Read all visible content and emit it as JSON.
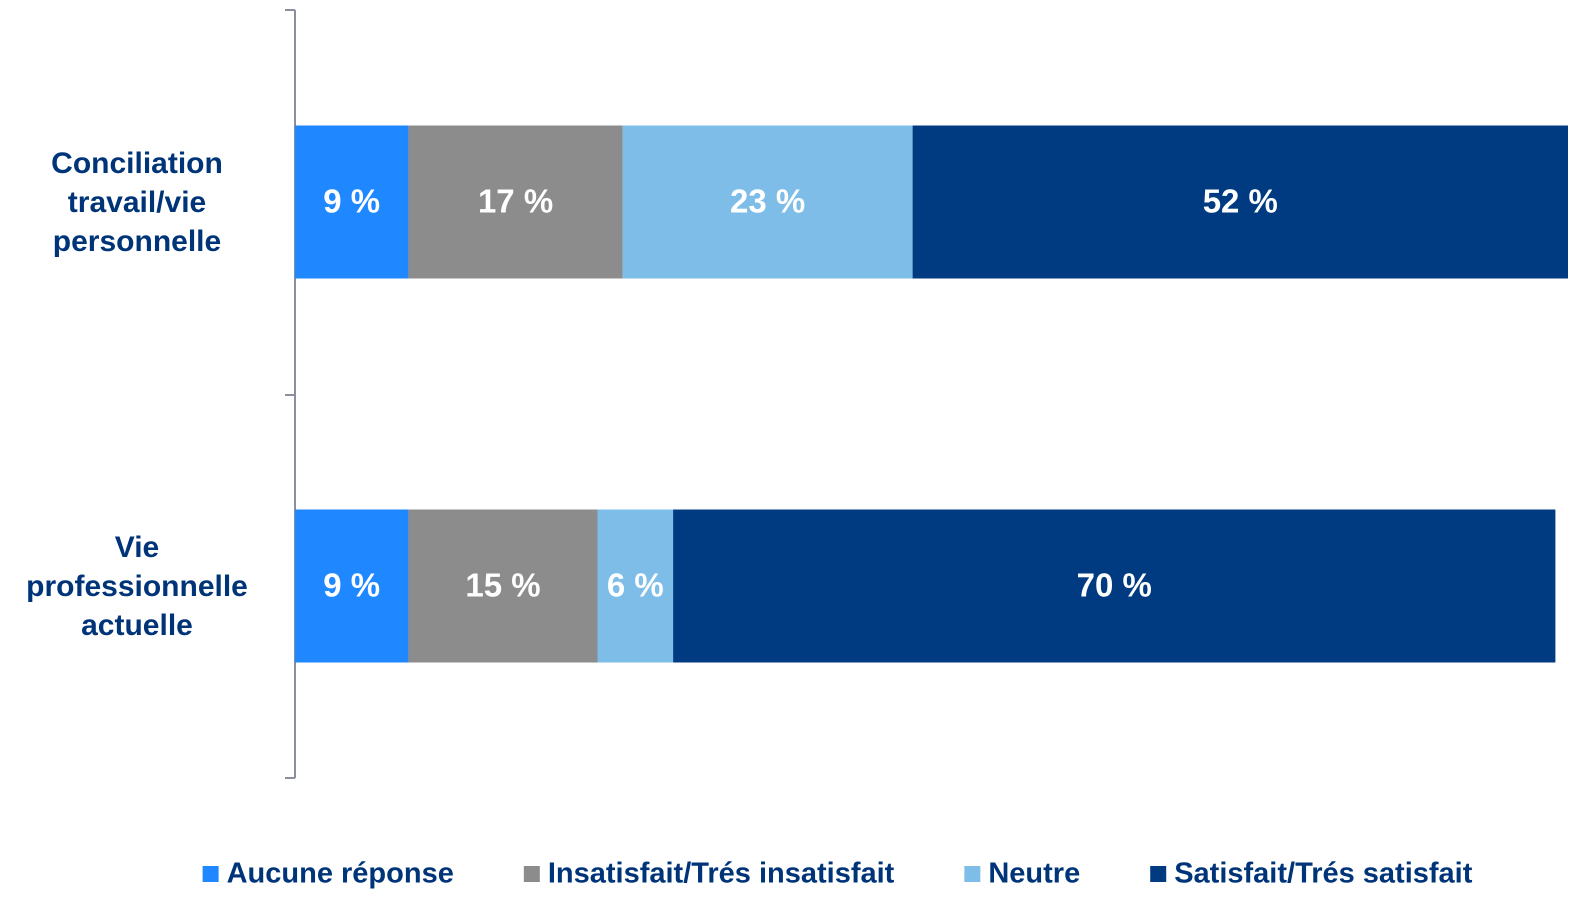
{
  "chart_data": {
    "type": "stacked-barh",
    "categories": [
      "Conciliation travail/vie personnelle",
      "Vie professionnelle actuelle"
    ],
    "series": [
      {
        "name": "Aucune réponse",
        "color": "#1f87ff",
        "values": [
          9,
          9
        ],
        "value_labels": [
          "9 %",
          "9 %"
        ]
      },
      {
        "name": "Insatisfait/Trés insatisfait",
        "color": "#8c8c8c",
        "values": [
          17,
          15
        ],
        "value_labels": [
          "17 %",
          "15 %"
        ]
      },
      {
        "name": "Neutre",
        "color": "#7dbde8",
        "values": [
          23,
          6
        ],
        "value_labels": [
          "23 %",
          "6 %"
        ]
      },
      {
        "name": "Satisfait/Trés satisfait",
        "color": "#003a80",
        "values": [
          52,
          70
        ],
        "value_labels": [
          "52 %",
          "70 %"
        ]
      }
    ],
    "xlim": [
      0,
      101
    ],
    "legend": "bottom"
  }
}
